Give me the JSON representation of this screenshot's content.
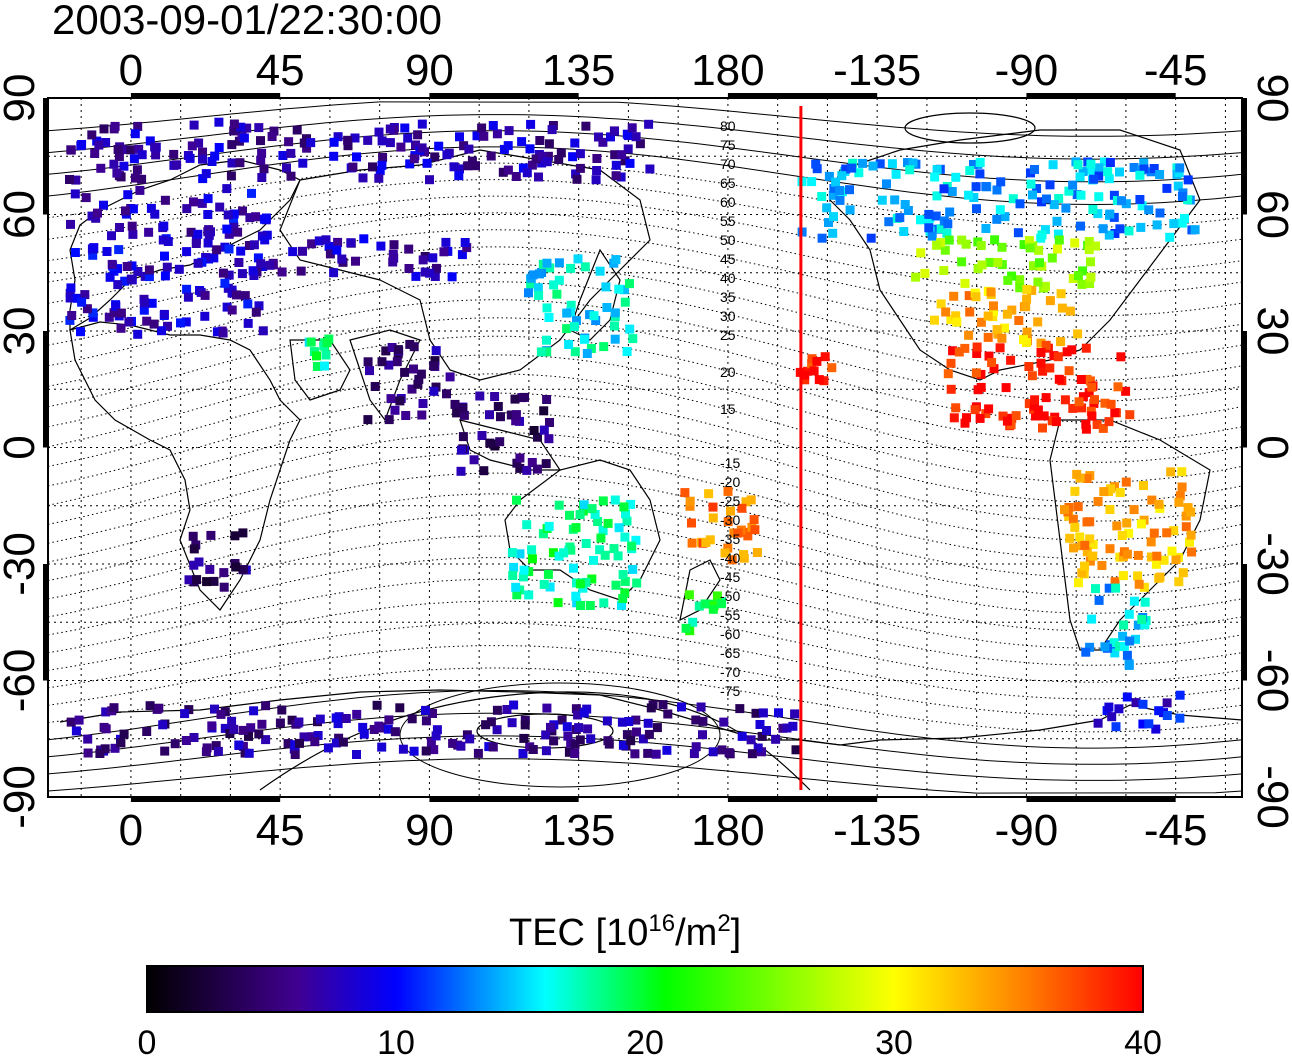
{
  "timestamp": "2003-09-01/22:30:00",
  "lon_ticks": [
    "0",
    "45",
    "90",
    "135",
    "180",
    "-135",
    "-90",
    "-45"
  ],
  "lat_ticks_left": [
    "90",
    "60",
    "30",
    "0",
    "-30",
    "-60",
    "-90"
  ],
  "lat_ticks_right": [
    "90",
    "60",
    "30",
    "0",
    "-30",
    "-60",
    "-90"
  ],
  "contour_labels_north": [
    "80",
    "75",
    "70",
    "65",
    "60",
    "55",
    "50",
    "45",
    "40",
    "35",
    "30",
    "25",
    "20",
    "15"
  ],
  "contour_labels_south": [
    "-15",
    "-20",
    "-25",
    "-30",
    "-35",
    "-40",
    "-45",
    "-50",
    "-55",
    "-60",
    "-65",
    "-70",
    "-75"
  ],
  "colorbar": {
    "title_prefix": "TEC  [10",
    "title_exp": "16",
    "title_unit": "/m",
    "title_unit_exp": "2",
    "title_suffix": "]",
    "tick_labels": [
      "0",
      "10",
      "20",
      "30",
      "40"
    ],
    "min": 0,
    "max": 40,
    "colors": [
      "#000000",
      "#400090",
      "#0000ff",
      "#00ffff",
      "#00ff00",
      "#ffff00",
      "#ff0000"
    ]
  },
  "map": {
    "lon_range_deg": [
      -25,
      335
    ],
    "lat_range_deg": [
      -90,
      90
    ],
    "marker_line_color": "#ff0000",
    "marker_line_lon": 202
  },
  "tec_regions": [
    {
      "name": "europe",
      "lon": [
        -20,
        40
      ],
      "lat": [
        30,
        68
      ],
      "tec": 8
    },
    {
      "name": "russia-west",
      "lon": [
        40,
        100
      ],
      "lat": [
        45,
        55
      ],
      "tec": 7
    },
    {
      "name": "arctic-scattered",
      "lon": [
        -20,
        160
      ],
      "lat": [
        70,
        85
      ],
      "tec": 7
    },
    {
      "name": "east-asia",
      "lon": [
        118,
        150
      ],
      "lat": [
        25,
        50
      ],
      "tec": 16
    },
    {
      "name": "middle-east",
      "lon": [
        50,
        60
      ],
      "lat": [
        22,
        30
      ],
      "tec": 18
    },
    {
      "name": "india",
      "lon": [
        70,
        95
      ],
      "lat": [
        8,
        28
      ],
      "tec": 5
    },
    {
      "name": "southern-africa",
      "lon": [
        15,
        35
      ],
      "lat": [
        -35,
        -20
      ],
      "tec": 5
    },
    {
      "name": "se-asia",
      "lon": [
        95,
        125
      ],
      "lat": [
        -5,
        15
      ],
      "tec": 5
    },
    {
      "name": "australia",
      "lon": [
        113,
        152
      ],
      "lat": [
        -40,
        -12
      ],
      "tec": 18
    },
    {
      "name": "new-zealand",
      "lon": [
        166,
        178
      ],
      "lat": [
        -47,
        -35
      ],
      "tec": 20
    },
    {
      "name": "pacific-south-hot",
      "lon": [
        165,
        190
      ],
      "lat": [
        -28,
        -10
      ],
      "tec": 35
    },
    {
      "name": "hawaii",
      "lon": [
        200,
        210
      ],
      "lat": [
        18,
        25
      ],
      "tec": 39
    },
    {
      "name": "north-america-north",
      "lon": [
        200,
        320
      ],
      "lat": [
        55,
        75
      ],
      "tec": 14
    },
    {
      "name": "north-america-mid",
      "lon": [
        235,
        290
      ],
      "lat": [
        42,
        55
      ],
      "tec": 26
    },
    {
      "name": "north-america-south",
      "lon": [
        240,
        285
      ],
      "lat": [
        28,
        42
      ],
      "tec": 33
    },
    {
      "name": "mexico-caribbean",
      "lon": [
        245,
        300
      ],
      "lat": [
        5,
        28
      ],
      "tec": 39
    },
    {
      "name": "south-america",
      "lon": [
        280,
        320
      ],
      "lat": [
        -35,
        -5
      ],
      "tec": 33
    },
    {
      "name": "patagonia",
      "lon": [
        285,
        305
      ],
      "lat": [
        -55,
        -35
      ],
      "tec": 15
    },
    {
      "name": "antarctic-coast",
      "lon": [
        -20,
        200
      ],
      "lat": [
        -78,
        -65
      ],
      "tec": 6
    },
    {
      "name": "antarctic-peninsula",
      "lon": [
        290,
        315
      ],
      "lat": [
        -72,
        -62
      ],
      "tec": 9
    }
  ]
}
